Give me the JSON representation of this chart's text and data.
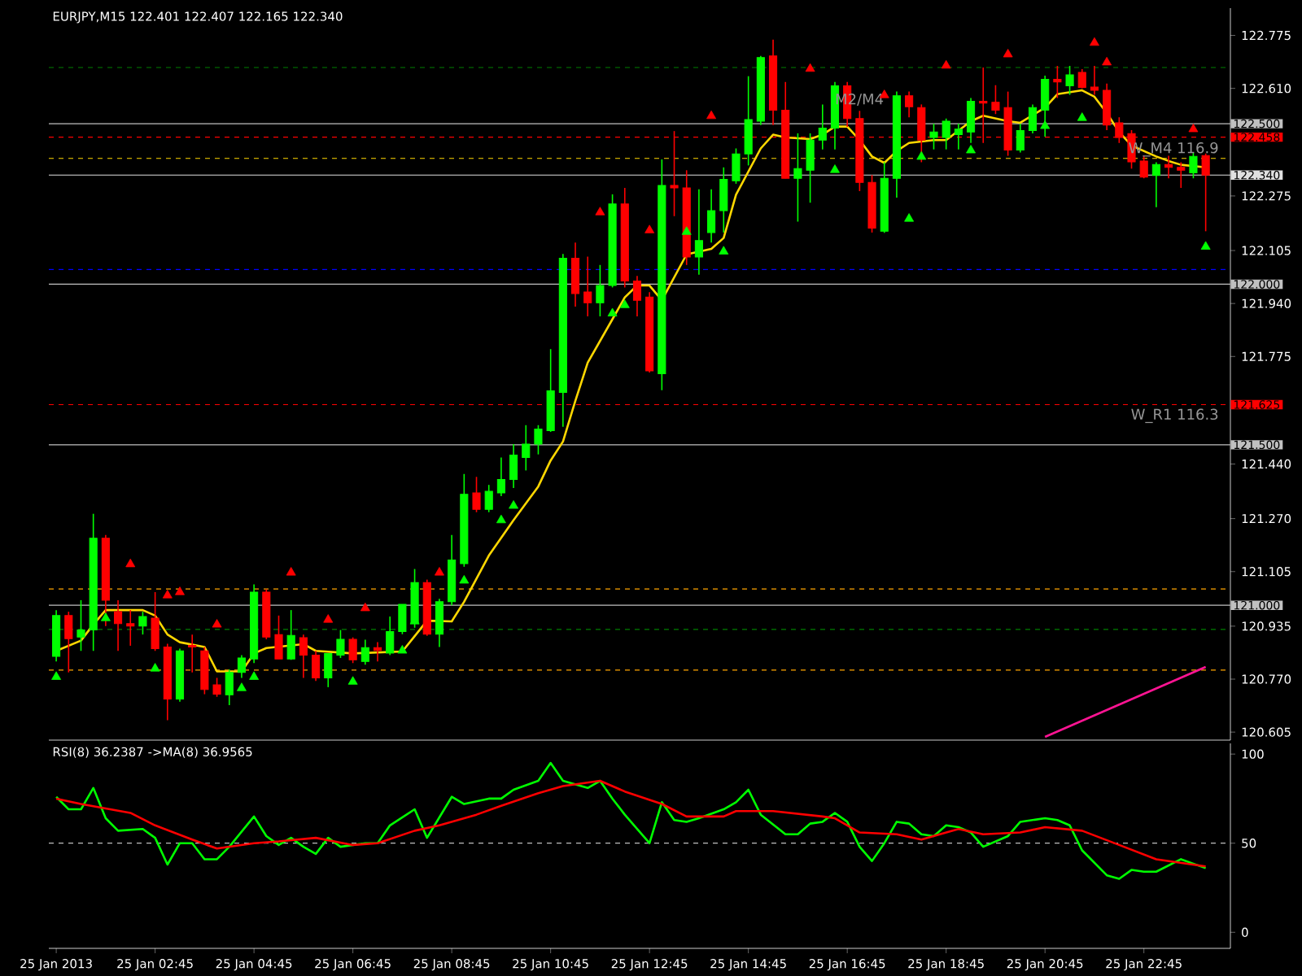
{
  "chart_data": [
    {
      "type": "candlestick",
      "title": "EURJPY,M15  122.401 122.407 122.165 122.340",
      "tick_labels": "y",
      "x": [
        "2013-01-25T00:45",
        "2013-01-25T01:00",
        "2013-01-25T01:15",
        "2013-01-25T01:30",
        "2013-01-25T01:45",
        "2013-01-25T02:00",
        "2013-01-25T02:15",
        "2013-01-25T02:30",
        "2013-01-25T02:45",
        "2013-01-25T03:00",
        "2013-01-25T03:15",
        "2013-01-25T03:30",
        "2013-01-25T03:45",
        "2013-01-25T04:00",
        "2013-01-25T04:15",
        "2013-01-25T04:30",
        "2013-01-25T04:45",
        "2013-01-25T05:00",
        "2013-01-25T05:15",
        "2013-01-25T05:30",
        "2013-01-25T05:45",
        "2013-01-25T06:00",
        "2013-01-25T06:15",
        "2013-01-25T06:30",
        "2013-01-25T06:45",
        "2013-01-25T07:00",
        "2013-01-25T07:15",
        "2013-01-25T07:30",
        "2013-01-25T07:45",
        "2013-01-25T08:00",
        "2013-01-25T08:15",
        "2013-01-25T08:30",
        "2013-01-25T08:45",
        "2013-01-25T09:00",
        "2013-01-25T09:15",
        "2013-01-25T09:30",
        "2013-01-25T09:45",
        "2013-01-25T10:00",
        "2013-01-25T10:15",
        "2013-01-25T10:30",
        "2013-01-25T10:45",
        "2013-01-25T11:00",
        "2013-01-25T11:15",
        "2013-01-25T11:30",
        "2013-01-25T11:45",
        "2013-01-25T12:00",
        "2013-01-25T12:15",
        "2013-01-25T12:30",
        "2013-01-25T12:45",
        "2013-01-25T13:00",
        "2013-01-25T13:15",
        "2013-01-25T13:30",
        "2013-01-25T13:45",
        "2013-01-25T14:00",
        "2013-01-25T14:15",
        "2013-01-25T14:30",
        "2013-01-25T14:45",
        "2013-01-25T15:00",
        "2013-01-25T15:15",
        "2013-01-25T15:30",
        "2013-01-25T15:45",
        "2013-01-25T16:00",
        "2013-01-25T16:15",
        "2013-01-25T16:30",
        "2013-01-25T16:45",
        "2013-01-25T17:00",
        "2013-01-25T17:15",
        "2013-01-25T17:30",
        "2013-01-25T17:45",
        "2013-01-25T18:00",
        "2013-01-25T18:15",
        "2013-01-25T18:30",
        "2013-01-25T18:45",
        "2013-01-25T19:00",
        "2013-01-25T19:15",
        "2013-01-25T19:30",
        "2013-01-25T19:45",
        "2013-01-25T20:00",
        "2013-01-25T20:15",
        "2013-01-25T20:30",
        "2013-01-25T20:45",
        "2013-01-25T21:00",
        "2013-01-25T21:15",
        "2013-01-25T21:30",
        "2013-01-25T21:45",
        "2013-01-25T22:00",
        "2013-01-25T22:15",
        "2013-01-25T22:30",
        "2013-01-25T22:45",
        "2013-01-25T23:00",
        "2013-01-25T23:15",
        "2013-01-25T23:30",
        "2013-01-25T23:45",
        "2013-01-26T00:00"
      ],
      "ohlc": [
        [
          120.841,
          120.985,
          120.825,
          120.968
        ],
        [
          120.968,
          120.98,
          120.791,
          120.896
        ],
        [
          120.901,
          121.016,
          120.858,
          120.923
        ],
        [
          120.923,
          121.285,
          120.858,
          121.209
        ],
        [
          121.209,
          121.219,
          120.935,
          121.016
        ],
        [
          120.98,
          121.016,
          120.858,
          120.943
        ],
        [
          120.943,
          120.985,
          120.874,
          120.935
        ],
        [
          120.935,
          120.98,
          120.909,
          120.965
        ],
        [
          120.96,
          121.041,
          120.858,
          120.865
        ],
        [
          120.87,
          120.88,
          120.642,
          120.708
        ],
        [
          120.708,
          120.865,
          120.7,
          120.858
        ],
        [
          120.875,
          120.909,
          120.791,
          120.87
        ],
        [
          120.858,
          120.87,
          120.723,
          120.738
        ],
        [
          120.752,
          120.774,
          120.715,
          120.723
        ],
        [
          120.721,
          120.8,
          120.689,
          120.791
        ],
        [
          120.791,
          120.845,
          120.774,
          120.836
        ],
        [
          120.833,
          121.065,
          120.82,
          121.041
        ],
        [
          121.041,
          121.05,
          120.894,
          120.901
        ],
        [
          120.909,
          120.968,
          120.833,
          120.833
        ],
        [
          120.833,
          120.985,
          120.83,
          120.906
        ],
        [
          120.899,
          120.909,
          120.774,
          120.845
        ],
        [
          120.845,
          120.858,
          120.764,
          120.774
        ],
        [
          120.774,
          120.85,
          120.745,
          120.85
        ],
        [
          120.845,
          120.923,
          120.836,
          120.894
        ],
        [
          120.894,
          120.9,
          120.82,
          120.83
        ],
        [
          120.825,
          120.893,
          120.815,
          120.868
        ],
        [
          120.868,
          120.885,
          120.825,
          120.859
        ],
        [
          120.851,
          120.965,
          120.845,
          120.918
        ],
        [
          120.918,
          121.003,
          120.91,
          121.003
        ],
        [
          120.944,
          121.113,
          120.93,
          121.071
        ],
        [
          121.071,
          121.08,
          120.905,
          120.91
        ],
        [
          120.91,
          121.02,
          120.87,
          121.011
        ],
        [
          121.011,
          121.219,
          121.0,
          121.141
        ],
        [
          121.13,
          121.409,
          121.12,
          121.346
        ],
        [
          121.35,
          121.4,
          121.29,
          121.299
        ],
        [
          121.299,
          121.375,
          121.29,
          121.355
        ],
        [
          121.35,
          121.46,
          121.34,
          121.392
        ],
        [
          121.392,
          121.502,
          121.365,
          121.468
        ],
        [
          121.46,
          121.561,
          121.42,
          121.502
        ],
        [
          121.502,
          121.561,
          121.47,
          121.549
        ],
        [
          121.544,
          121.798,
          121.54,
          121.668
        ],
        [
          121.663,
          122.094,
          121.556,
          122.081
        ],
        [
          122.081,
          122.13,
          121.93,
          121.971
        ],
        [
          121.976,
          122.086,
          121.9,
          121.942
        ],
        [
          121.942,
          122.06,
          121.9,
          121.996
        ],
        [
          121.996,
          122.28,
          121.99,
          122.25
        ],
        [
          122.25,
          122.3,
          121.99,
          122.01
        ],
        [
          122.01,
          122.026,
          121.9,
          121.95
        ],
        [
          121.96,
          121.975,
          121.725,
          121.73
        ],
        [
          121.721,
          122.389,
          121.67,
          122.308
        ],
        [
          122.308,
          122.477,
          122.212,
          122.3
        ],
        [
          122.3,
          122.355,
          122.06,
          122.085
        ],
        [
          122.085,
          122.296,
          122.03,
          122.136
        ],
        [
          122.161,
          122.296,
          122.13,
          122.229
        ],
        [
          122.229,
          122.364,
          122.161,
          122.327
        ],
        [
          122.322,
          122.423,
          122.313,
          122.406
        ],
        [
          122.406,
          122.648,
          122.37,
          122.513
        ],
        [
          122.508,
          122.711,
          122.496,
          122.706
        ],
        [
          122.711,
          122.762,
          122.496,
          122.542
        ],
        [
          122.542,
          122.63,
          122.33,
          122.33
        ],
        [
          122.33,
          122.47,
          122.195,
          122.36
        ],
        [
          122.355,
          122.47,
          122.254,
          122.449
        ],
        [
          122.449,
          122.56,
          122.42,
          122.486
        ],
        [
          122.486,
          122.63,
          122.42,
          122.618
        ],
        [
          122.618,
          122.63,
          122.49,
          122.516
        ],
        [
          122.516,
          122.54,
          122.29,
          122.317
        ],
        [
          122.317,
          122.34,
          122.161,
          122.175
        ],
        [
          122.165,
          122.38,
          122.16,
          122.33
        ],
        [
          122.33,
          122.6,
          122.27,
          122.587
        ],
        [
          122.587,
          122.6,
          122.52,
          122.553
        ],
        [
          122.55,
          122.56,
          122.38,
          122.449
        ],
        [
          122.457,
          122.5,
          122.42,
          122.474
        ],
        [
          122.457,
          122.516,
          122.42,
          122.508
        ],
        [
          122.466,
          122.5,
          122.42,
          122.483
        ],
        [
          122.474,
          122.58,
          122.44,
          122.57
        ],
        [
          122.57,
          122.675,
          122.44,
          122.564
        ],
        [
          122.567,
          122.62,
          122.53,
          122.542
        ],
        [
          122.55,
          122.6,
          122.4,
          122.418
        ],
        [
          122.418,
          122.5,
          122.41,
          122.479
        ],
        [
          122.479,
          122.56,
          122.47,
          122.55
        ],
        [
          122.542,
          122.65,
          122.46,
          122.638
        ],
        [
          122.638,
          122.68,
          122.58,
          122.63
        ],
        [
          122.618,
          122.68,
          122.59,
          122.652
        ],
        [
          122.66,
          122.67,
          122.61,
          122.613
        ],
        [
          122.614,
          122.68,
          122.59,
          122.604
        ],
        [
          122.604,
          122.625,
          122.48,
          122.496
        ],
        [
          122.503,
          122.52,
          122.44,
          122.457
        ],
        [
          122.469,
          122.48,
          122.36,
          122.381
        ],
        [
          122.384,
          122.4,
          122.33,
          122.334
        ],
        [
          122.339,
          122.38,
          122.24,
          122.373
        ],
        [
          122.373,
          122.4,
          122.33,
          122.364
        ],
        [
          122.364,
          122.38,
          122.3,
          122.355
        ],
        [
          122.347,
          122.41,
          122.33,
          122.398
        ],
        [
          122.401,
          122.407,
          122.165,
          122.34
        ]
      ],
      "series": [
        {
          "type": "line",
          "color": "#ffd700",
          "x": [
            "2013-01-25T00:45",
            "2013-01-25T01:15",
            "2013-01-25T01:30",
            "2013-01-25T01:45",
            "2013-01-25T02:30",
            "2013-01-25T02:45",
            "2013-01-25T03:00",
            "2013-01-25T03:15",
            "2013-01-25T03:45",
            "2013-01-25T04:00",
            "2013-01-25T04:30",
            "2013-01-25T04:45",
            "2013-01-25T05:00",
            "2013-01-25T05:45",
            "2013-01-25T06:00",
            "2013-01-25T06:45",
            "2013-01-25T07:45",
            "2013-01-25T08:15",
            "2013-01-25T08:45",
            "2013-01-25T09:00",
            "2013-01-25T09:30",
            "2013-01-25T10:00",
            "2013-01-25T10:30",
            "2013-01-25T10:45",
            "2013-01-25T11:00",
            "2013-01-25T11:15",
            "2013-01-25T11:30",
            "2013-01-25T12:00",
            "2013-01-25T12:15",
            "2013-01-25T12:30",
            "2013-01-25T12:45",
            "2013-01-25T13:00",
            "2013-01-25T13:30",
            "2013-01-25T14:00",
            "2013-01-25T14:15",
            "2013-01-25T14:30",
            "2013-01-25T15:00",
            "2013-01-25T15:15",
            "2013-01-25T15:30",
            "2013-01-25T16:00",
            "2013-01-25T16:15",
            "2013-01-25T16:30",
            "2013-01-25T16:45",
            "2013-01-25T17:00",
            "2013-01-25T17:15",
            "2013-01-25T17:30",
            "2013-01-25T17:45",
            "2013-01-25T18:00",
            "2013-01-25T18:30",
            "2013-01-25T18:45",
            "2013-01-25T19:15",
            "2013-01-25T19:30",
            "2013-01-25T20:00",
            "2013-01-25T20:15",
            "2013-01-25T20:45",
            "2013-01-25T21:00",
            "2013-01-25T21:30",
            "2013-01-25T21:45",
            "2013-01-25T22:00",
            "2013-01-25T22:15",
            "2013-01-25T22:30",
            "2013-01-25T23:00",
            "2013-01-25T23:15",
            "2013-01-25T23:30",
            "2013-01-26T00:00"
          ],
          "values": [
            120.858,
            120.89,
            120.94,
            120.985,
            120.985,
            120.968,
            120.909,
            120.885,
            120.87,
            120.794,
            120.794,
            120.85,
            120.867,
            120.879,
            120.858,
            120.85,
            120.856,
            120.952,
            120.95,
            121.011,
            121.155,
            121.265,
            121.37,
            121.451,
            121.51,
            121.637,
            121.756,
            121.891,
            121.959,
            121.996,
            121.996,
            121.95,
            122.093,
            122.11,
            122.144,
            122.279,
            122.423,
            122.466,
            122.457,
            122.452,
            122.466,
            122.491,
            122.491,
            122.449,
            122.398,
            122.378,
            122.415,
            122.44,
            122.449,
            122.449,
            122.508,
            122.525,
            122.508,
            122.503,
            122.55,
            122.592,
            122.604,
            122.584,
            122.533,
            122.474,
            122.432,
            122.398,
            122.384,
            122.372,
            122.364
          ]
        },
        {
          "type": "scatter",
          "marker": "triangle",
          "color": "#ff0000",
          "x": [
            "2013-01-25T02:15",
            "2013-01-25T03:00",
            "2013-01-25T03:15",
            "2013-01-25T04:00",
            "2013-01-25T05:30",
            "2013-01-25T06:15",
            "2013-01-25T07:00",
            "2013-01-25T08:30",
            "2013-01-25T11:45",
            "2013-01-25T12:45",
            "2013-01-25T14:00",
            "2013-01-25T16:00",
            "2013-01-25T17:30",
            "2013-01-25T18:45",
            "2013-01-25T20:00",
            "2013-01-25T21:45",
            "2013-01-25T22:00",
            "2013-01-25T23:45"
          ],
          "values": [
            121.128,
            121.031,
            121.041,
            120.94,
            121.102,
            120.955,
            120.991,
            121.102,
            122.224,
            122.168,
            122.524,
            122.671,
            122.589,
            122.681,
            122.716,
            122.752,
            122.691,
            122.483
          ]
        },
        {
          "type": "scatter",
          "marker": "triangle",
          "color": "#00ff00",
          "x": [
            "2013-01-25T00:45",
            "2013-01-25T01:45",
            "2013-01-25T02:45",
            "2013-01-25T04:30",
            "2013-01-25T04:45",
            "2013-01-25T06:45",
            "2013-01-25T07:45",
            "2013-01-25T08:00",
            "2013-01-25T09:00",
            "2013-01-25T09:45",
            "2013-01-25T10:00",
            "2013-01-25T12:00",
            "2013-01-25T12:15",
            "2013-01-25T13:30",
            "2013-01-25T14:15",
            "2013-01-25T16:30",
            "2013-01-25T18:00",
            "2013-01-25T18:15",
            "2013-01-25T19:15",
            "2013-01-25T20:45",
            "2013-01-25T21:30",
            "2013-01-26T00:00"
          ],
          "values": [
            120.777,
            120.96,
            120.803,
            120.742,
            120.777,
            120.762,
            120.859,
            120.95,
            121.077,
            121.265,
            121.31,
            121.909,
            121.935,
            122.163,
            122.102,
            122.356,
            122.204,
            122.397,
            122.417,
            122.493,
            122.518,
            122.117
          ]
        },
        {
          "type": "line",
          "color": "#ff1493",
          "x": [
            "2013-01-25T20:45",
            "2013-01-26T00:00"
          ],
          "values": [
            120.59,
            120.808
          ]
        }
      ],
      "xlim": [
        "2013-01-25T00:36",
        "2013-01-26T00:30"
      ],
      "ylim": [
        120.58,
        122.86
      ],
      "yticks": [
        122.775,
        {
          "value": 122.61,
          "label": "122.610"
        },
        122.275,
        122.105,
        {
          "value": 121.94,
          "label": "121.940"
        },
        121.775,
        {
          "value": 121.44,
          "label": "121.440"
        },
        {
          "value": 121.27,
          "label": "121.270"
        },
        121.105,
        120.935,
        {
          "value": 120.77,
          "label": "120.770"
        },
        120.605
      ],
      "ref_lines": [
        {
          "axis": "y",
          "value": 122.675,
          "color": "#008000",
          "line_style": "dashed"
        },
        {
          "axis": "y",
          "value": 122.5,
          "color": "#c0c0c0",
          "line_style": "solid",
          "label": "122.500"
        },
        {
          "axis": "y",
          "value": 122.458,
          "color": "#ff0000",
          "line_style": "dashed",
          "label": "122.458"
        },
        {
          "axis": "y",
          "value": 122.392,
          "color": "#ffd700",
          "line_style": "dashed"
        },
        {
          "axis": "y",
          "value": 122.34,
          "color": "#e0e0e0",
          "line_style": "solid",
          "label": "122.340"
        },
        {
          "axis": "y",
          "value": 122.046,
          "color": "#0000ff",
          "line_style": "dashed"
        },
        {
          "axis": "y",
          "value": 122.0,
          "color": "#c0c0c0",
          "line_style": "solid",
          "label": "122.000"
        },
        {
          "axis": "y",
          "value": 121.625,
          "color": "#ff0000",
          "line_style": "dashed",
          "label": "121.625"
        },
        {
          "axis": "y",
          "value": 121.5,
          "color": "#c0c0c0",
          "line_style": "solid",
          "label": "121.500"
        },
        {
          "axis": "y",
          "value": 121.051,
          "color": "#ffa500",
          "line_style": "dashed"
        },
        {
          "axis": "y",
          "value": 121.0,
          "color": "#c0c0c0",
          "line_style": "solid",
          "label": "121.000"
        },
        {
          "axis": "y",
          "value": 120.925,
          "color": "#008000",
          "line_style": "dashed"
        },
        {
          "axis": "y",
          "value": 120.798,
          "color": "#ffa500",
          "line_style": "dashed"
        }
      ],
      "annotations": [
        "M2/M4",
        "W_M4 116.9",
        "W_R1 116.3"
      ]
    },
    {
      "type": "line",
      "title": "RSI(8) 36.2387  ->MA(8) 36.9565",
      "series": [
        {
          "color": "#00ff00",
          "x": [
            "2013-01-25T00:45",
            "2013-01-25T01:00",
            "2013-01-25T01:15",
            "2013-01-25T01:30",
            "2013-01-25T01:45",
            "2013-01-25T02:00",
            "2013-01-25T02:30",
            "2013-01-25T02:45",
            "2013-01-25T03:00",
            "2013-01-25T03:15",
            "2013-01-25T03:30",
            "2013-01-25T03:45",
            "2013-01-25T04:00",
            "2013-01-25T04:15",
            "2013-01-25T04:45",
            "2013-01-25T05:00",
            "2013-01-25T05:15",
            "2013-01-25T05:30",
            "2013-01-25T05:45",
            "2013-01-25T06:00",
            "2013-01-25T06:15",
            "2013-01-25T06:30",
            "2013-01-25T07:00",
            "2013-01-25T07:15",
            "2013-01-25T07:30",
            "2013-01-25T08:00",
            "2013-01-25T08:15",
            "2013-01-25T08:45",
            "2013-01-25T09:00",
            "2013-01-25T09:30",
            "2013-01-25T09:45",
            "2013-01-25T10:00",
            "2013-01-25T10:30",
            "2013-01-25T10:45",
            "2013-01-25T11:00",
            "2013-01-25T11:30",
            "2013-01-25T11:45",
            "2013-01-25T12:00",
            "2013-01-25T12:15",
            "2013-01-25T12:45",
            "2013-01-25T13:00",
            "2013-01-25T13:15",
            "2013-01-25T13:30",
            "2013-01-25T13:45",
            "2013-01-25T14:15",
            "2013-01-25T14:30",
            "2013-01-25T14:45",
            "2013-01-25T15:00",
            "2013-01-25T15:30",
            "2013-01-25T15:45",
            "2013-01-25T16:00",
            "2013-01-25T16:15",
            "2013-01-25T16:30",
            "2013-01-25T16:45",
            "2013-01-25T17:00",
            "2013-01-25T17:15",
            "2013-01-25T17:30",
            "2013-01-25T17:45",
            "2013-01-25T18:00",
            "2013-01-25T18:15",
            "2013-01-25T18:30",
            "2013-01-25T18:45",
            "2013-01-25T19:00",
            "2013-01-25T19:15",
            "2013-01-25T19:30",
            "2013-01-25T20:00",
            "2013-01-25T20:15",
            "2013-01-25T20:45",
            "2013-01-25T21:00",
            "2013-01-25T21:15",
            "2013-01-25T21:30",
            "2013-01-25T21:45",
            "2013-01-25T22:00",
            "2013-01-25T22:15",
            "2013-01-25T22:30",
            "2013-01-25T22:45",
            "2013-01-25T23:00",
            "2013-01-25T23:30",
            "2013-01-26T00:00"
          ],
          "values": [
            76,
            69,
            69,
            81,
            64,
            57,
            58,
            53,
            38,
            50,
            50,
            41,
            41,
            48,
            65,
            54,
            49,
            53,
            48,
            44,
            53,
            48,
            50,
            50,
            60,
            69,
            53,
            76,
            72,
            75,
            75,
            80,
            85,
            95,
            85,
            81,
            85,
            75,
            66,
            50,
            73,
            63,
            62,
            64,
            69,
            73,
            80,
            66,
            55,
            55,
            61,
            62,
            67,
            62,
            48,
            40,
            50,
            62,
            61,
            55,
            54,
            60,
            59,
            56,
            48,
            54,
            62,
            64,
            63,
            60,
            46,
            39,
            32,
            30,
            35,
            34,
            34,
            41,
            36
          ]
        },
        {
          "color": "#ff0000",
          "x": [
            "2013-01-25T00:45",
            "2013-01-25T01:15",
            "2013-01-25T02:15",
            "2013-01-25T02:45",
            "2013-01-25T03:30",
            "2013-01-25T04:00",
            "2013-01-25T04:45",
            "2013-01-25T05:15",
            "2013-01-25T06:00",
            "2013-01-25T06:45",
            "2013-01-25T07:15",
            "2013-01-25T08:00",
            "2013-01-25T08:30",
            "2013-01-25T09:15",
            "2013-01-25T09:45",
            "2013-01-25T10:30",
            "2013-01-25T11:00",
            "2013-01-25T11:45",
            "2013-01-25T12:15",
            "2013-01-25T13:00",
            "2013-01-25T13:30",
            "2013-01-25T14:15",
            "2013-01-25T14:30",
            "2013-01-25T15:15",
            "2013-01-25T16:15",
            "2013-01-25T16:30",
            "2013-01-25T17:00",
            "2013-01-25T17:45",
            "2013-01-25T18:15",
            "2013-01-25T19:00",
            "2013-01-25T19:30",
            "2013-01-25T20:15",
            "2013-01-25T20:45",
            "2013-01-25T21:30",
            "2013-01-25T22:15",
            "2013-01-25T23:00",
            "2013-01-26T00:00"
          ],
          "values": [
            75,
            72,
            67,
            60,
            52,
            47,
            50,
            51,
            53,
            49,
            50,
            57,
            60,
            66,
            71,
            78,
            82,
            85,
            79,
            72,
            65,
            65,
            68,
            68,
            65,
            64,
            56,
            55,
            52,
            58,
            55,
            56,
            59,
            57,
            49,
            41,
            37
          ]
        }
      ],
      "xlim": [
        "2013-01-25T00:36",
        "2013-01-26T00:30"
      ],
      "ylim": [
        -9,
        106
      ],
      "yticks": [
        0,
        50,
        100
      ],
      "xticks": [
        {
          "value": "2013-01-25T00:45",
          "label": "25 Jan 2013"
        },
        {
          "value": "2013-01-25T02:45",
          "label": "25 Jan 02:45"
        },
        {
          "value": "2013-01-25T04:45",
          "label": "25 Jan 04:45"
        },
        {
          "value": "2013-01-25T06:45",
          "label": "25 Jan 06:45"
        },
        {
          "value": "2013-01-25T08:45",
          "label": "25 Jan 08:45"
        },
        {
          "value": "2013-01-25T10:45",
          "label": "25 Jan 10:45"
        },
        {
          "value": "2013-01-25T12:45",
          "label": "25 Jan 12:45"
        },
        {
          "value": "2013-01-25T14:45",
          "label": "25 Jan 14:45"
        },
        {
          "value": "2013-01-25T16:45",
          "label": "25 Jan 16:45"
        },
        {
          "value": "2013-01-25T18:45",
          "label": "25 Jan 18:45"
        },
        {
          "value": "2013-01-25T20:45",
          "label": "25 Jan 20:45"
        },
        {
          "value": "2013-01-25T22:45",
          "label": "25 Jan 22:45"
        }
      ],
      "ref_lines": [
        {
          "axis": "y",
          "value": 50,
          "color": "#c0c0c0",
          "line_style": "dashed"
        }
      ]
    }
  ]
}
